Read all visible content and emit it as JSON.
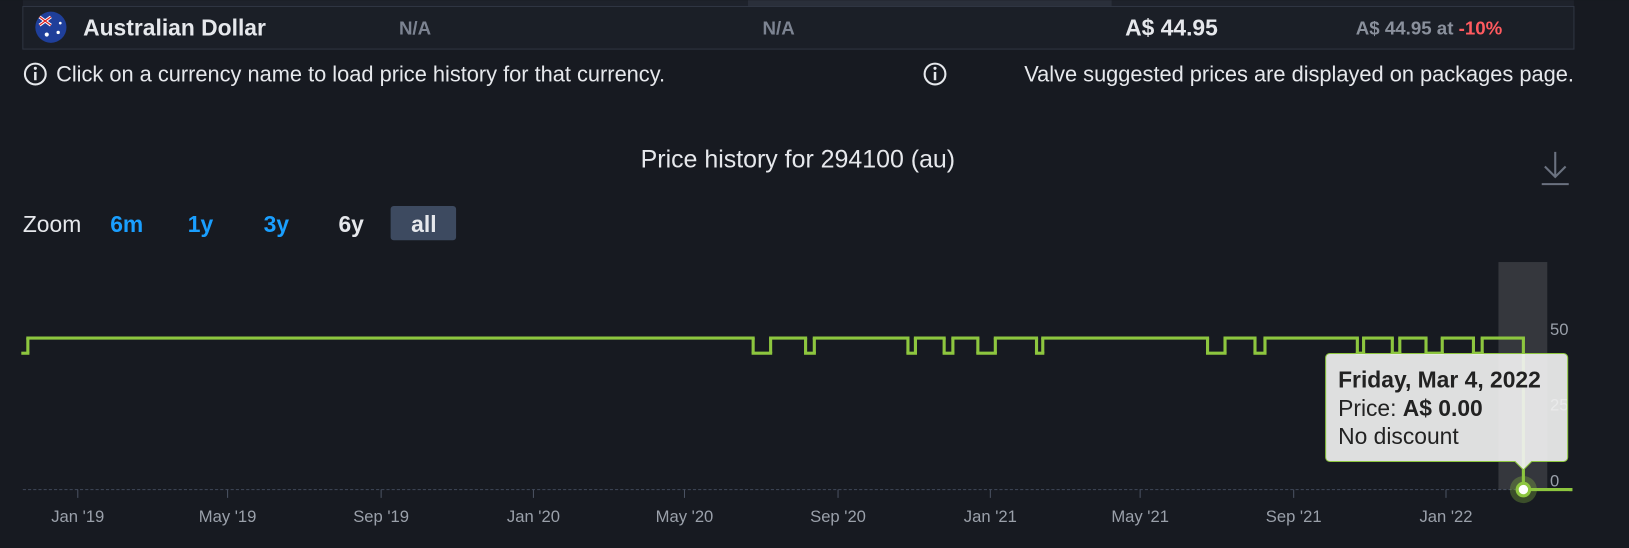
{
  "currency_row": {
    "name": "Australian Dollar",
    "col2": "N/A",
    "col3": "N/A",
    "price": "A$ 44.95",
    "lowest": "A$ 44.95 at",
    "lowest_discount": "-10%"
  },
  "notes": [
    "Click on a currency name to load price history for that currency.",
    "Valve suggested prices are displayed on packages page."
  ],
  "zoom": {
    "label": "Zoom",
    "options": [
      "6m",
      "1y",
      "3y",
      "6y",
      "all"
    ]
  },
  "chart_data": {
    "type": "line",
    "title": "Price history for 294100 (au)",
    "step": "after",
    "color": "#8dc63f",
    "x": [
      "2018-11-18",
      "2018-11-22",
      "2020-06-25",
      "2020-07-09",
      "2020-08-06",
      "2020-08-13",
      "2020-10-27",
      "2020-11-02",
      "2020-11-25",
      "2020-12-02",
      "2020-12-22",
      "2021-01-05",
      "2021-02-07",
      "2021-02-12",
      "2021-06-24",
      "2021-07-08",
      "2021-08-01",
      "2021-08-09",
      "2021-10-22",
      "2021-10-27",
      "2021-11-19",
      "2021-11-25",
      "2021-12-16",
      "2021-12-29",
      "2022-01-23",
      "2022-01-30",
      "2022-03-04",
      "2022-04-11"
    ],
    "values": [
      44.95,
      49.95,
      44.95,
      49.95,
      44.95,
      49.95,
      44.95,
      49.95,
      44.95,
      49.95,
      44.95,
      49.95,
      44.95,
      49.95,
      44.95,
      49.95,
      44.95,
      49.95,
      44.95,
      49.95,
      44.95,
      49.95,
      44.95,
      49.95,
      44.95,
      49.95,
      0,
      0
    ],
    "xlim": [
      "2018-11-18",
      "2022-04-11"
    ],
    "xticks": [
      {
        "value": "2019-01-01",
        "label": "Jan '19"
      },
      {
        "value": "2019-05-01",
        "label": "May '19"
      },
      {
        "value": "2019-09-01",
        "label": "Sep '19"
      },
      {
        "value": "2020-01-01",
        "label": "Jan '20"
      },
      {
        "value": "2020-05-01",
        "label": "May '20"
      },
      {
        "value": "2020-09-01",
        "label": "Sep '20"
      },
      {
        "value": "2021-01-01",
        "label": "Jan '21"
      },
      {
        "value": "2021-05-01",
        "label": "May '21"
      },
      {
        "value": "2021-09-01",
        "label": "Sep '21"
      },
      {
        "value": "2022-01-01",
        "label": "Jan '22"
      }
    ],
    "ylim": [
      0,
      50
    ],
    "yticks": [
      0,
      25,
      50
    ],
    "grid": false,
    "tooltip": {
      "title": "Friday, Mar 4, 2022",
      "price_label": "Price:",
      "price": "A$ 0.00",
      "discount": "No discount"
    }
  }
}
